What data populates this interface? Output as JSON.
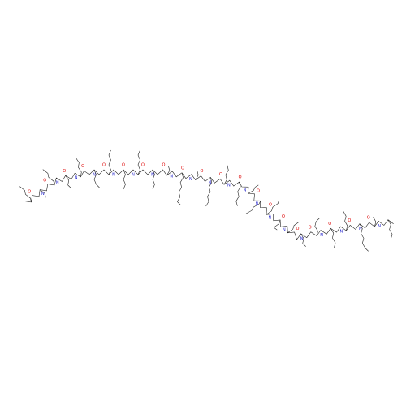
{
  "structure": {
    "atom_labels": [
      "O",
      "N",
      "O",
      "N",
      "O",
      "N",
      "O",
      "N",
      "O",
      "N",
      "O",
      "N",
      "O",
      "N",
      "O",
      "N",
      "O",
      "N",
      "O",
      "N",
      "O",
      "N",
      "O",
      "N",
      "O",
      "N",
      "O",
      "N",
      "O",
      "N",
      "O",
      "N",
      "O",
      "N",
      "O",
      "N",
      "O",
      "N",
      "O",
      "N"
    ]
  }
}
